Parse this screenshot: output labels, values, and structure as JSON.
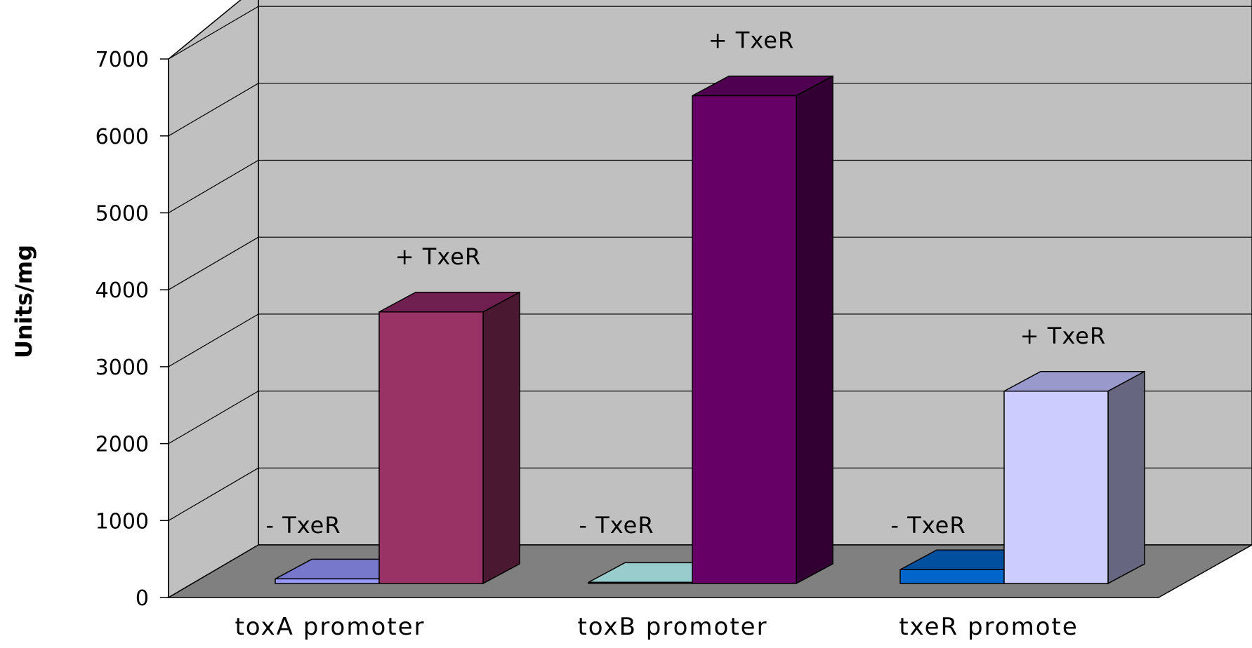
{
  "chart_data": {
    "type": "bar",
    "title": "",
    "xlabel": "",
    "ylabel": "Units/mg",
    "ylim": [
      0,
      7000
    ],
    "yticks": [
      "0",
      "1000",
      "2000",
      "3000",
      "4000",
      "5000",
      "6000",
      "7000"
    ],
    "grid": true,
    "style": "3d-clustered-column",
    "categories": [
      "toxA promoter",
      "toxB promoter",
      "txeR promoter"
    ],
    "category_labels_shown": [
      "toxA promoter",
      "toxB promoter",
      "txeR promote"
    ],
    "bars": [
      {
        "category": "toxA promoter",
        "label": "- TxeR",
        "value": 60,
        "colors": {
          "front": "#9999ff",
          "top": "#7777cc",
          "side": "#5555aa"
        }
      },
      {
        "category": "toxA promoter",
        "label": "+ TxeR",
        "value": 3530,
        "colors": {
          "front": "#993366",
          "top": "#702050",
          "side": "#4a1830"
        }
      },
      {
        "category": "toxB promoter",
        "label": "- TxeR",
        "value": 15,
        "colors": {
          "front": "#ccffff",
          "top": "#99cccc",
          "side": "#6f9999"
        }
      },
      {
        "category": "toxB promoter",
        "label": "+ TxeR",
        "value": 6340,
        "colors": {
          "front": "#660066",
          "top": "#500050",
          "side": "#330033"
        }
      },
      {
        "category": "txeR promoter",
        "label": "- TxeR",
        "value": 180,
        "colors": {
          "front": "#0066cc",
          "top": "#00509f",
          "side": "#003a78"
        }
      },
      {
        "category": "txeR promoter",
        "label": "+ TxeR",
        "value": 2500,
        "colors": {
          "front": "#ccccff",
          "top": "#9999cc",
          "side": "#666680"
        }
      }
    ],
    "colors": {
      "back_wall": "#c0c0c0",
      "side_wall": "#c0c0c0",
      "floor": "#808080",
      "grid": "#000000"
    }
  }
}
